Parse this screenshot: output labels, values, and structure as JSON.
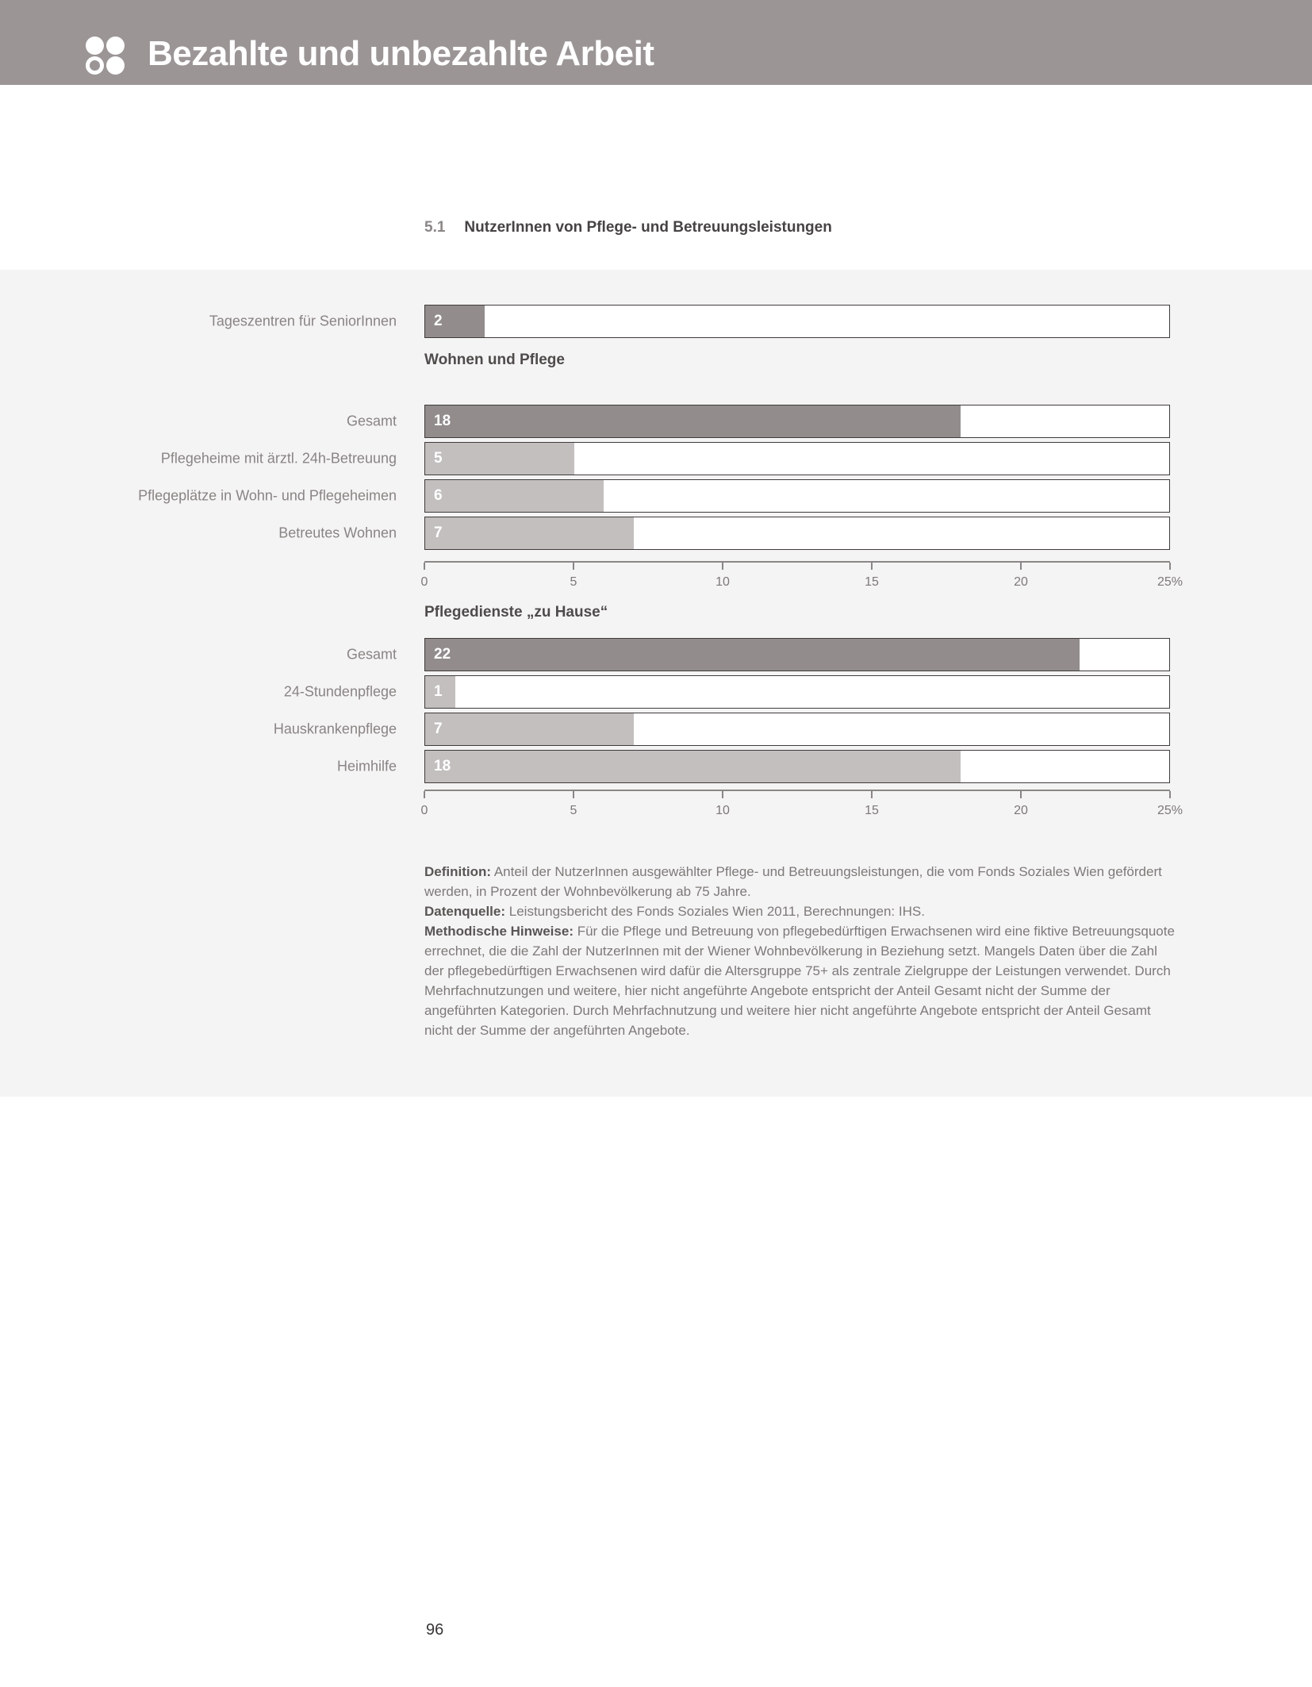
{
  "header": {
    "title": "Bezahlte und unbezahlte Arbeit",
    "logo": "four-circles-icon"
  },
  "section": {
    "number": "5.1",
    "title": "NutzerInnen von Pflege- und Betreuungsleistungen"
  },
  "chart_data": {
    "type": "bar",
    "orientation": "horizontal",
    "unit": "percent of population 75+",
    "xlim": [
      0,
      25
    ],
    "x_ticks": [
      "0",
      "5",
      "10",
      "15",
      "20",
      "25%"
    ],
    "grid": false,
    "legend": false,
    "groups": [
      {
        "title": "",
        "bars": [
          {
            "label": "Tageszentren für SeniorInnen",
            "value": 2,
            "emphasis": true
          }
        ]
      },
      {
        "title": "Wohnen und Pflege",
        "bars": [
          {
            "label": "Gesamt",
            "value": 18,
            "emphasis": true
          },
          {
            "label": "Pflegeheime mit ärztl. 24h-Betreuung",
            "value": 5,
            "emphasis": false
          },
          {
            "label": "Pflegeplätze in Wohn- und Pflegeheimen",
            "value": 6,
            "emphasis": false
          },
          {
            "label": "Betreutes Wohnen",
            "value": 7,
            "emphasis": false
          }
        ]
      },
      {
        "title": "Pflegedienste „zu Hause“",
        "bars": [
          {
            "label": "Gesamt",
            "value": 22,
            "emphasis": true
          },
          {
            "label": "24-Stundenpflege",
            "value": 1,
            "emphasis": false
          },
          {
            "label": "Hauskrankenpflege",
            "value": 7,
            "emphasis": false
          },
          {
            "label": "Heimhilfe",
            "value": 18,
            "emphasis": false
          }
        ]
      }
    ]
  },
  "notes": {
    "definition": {
      "label": "Definition:",
      "text": " Anteil der NutzerInnen ausgewählter Pflege- und Betreuungsleistungen, die vom Fonds Soziales Wien gefördert werden, in Prozent der Wohnbevölkerung ab 75 Jahre."
    },
    "datenquelle": {
      "label": "Datenquelle:",
      "text": " Leistungsbericht des Fonds Soziales Wien 2011, Berechnungen: IHS."
    },
    "methodisch": {
      "label": "Methodische Hinweise:",
      "text": " Für die Pflege und Betreuung von pflegebedürftigen Erwachsenen wird eine fiktive Betreuungsquote errechnet, die die Zahl der NutzerInnen mit der Wiener Wohnbevölkerung in Beziehung setzt. Mangels Daten über die Zahl der pflegebedürftigen Erwachsenen wird dafür die Altersgruppe 75+ als zentrale Zielgruppe der Leistungen verwendet. Durch Mehrfachnutzungen und weitere, hier nicht angeführte Angebote entspricht der Anteil Gesamt nicht der Summe der angeführten Kategorien. Durch Mehrfachnutzung und weitere hier nicht angeführte Angebote entspricht der Anteil Gesamt nicht der Summe der angeführten Angebote."
    }
  },
  "footer": {
    "page_number": "96"
  },
  "colors": {
    "header_band": "#9b9595",
    "panel_background": "#f5f4f4",
    "bar_dark": "#928c8c",
    "bar_light": "#c3bfbf",
    "bar_border": "#3f3b3b",
    "axis": "#8b8686",
    "label_text": "#8a8484",
    "value_text": "#ffffff"
  }
}
